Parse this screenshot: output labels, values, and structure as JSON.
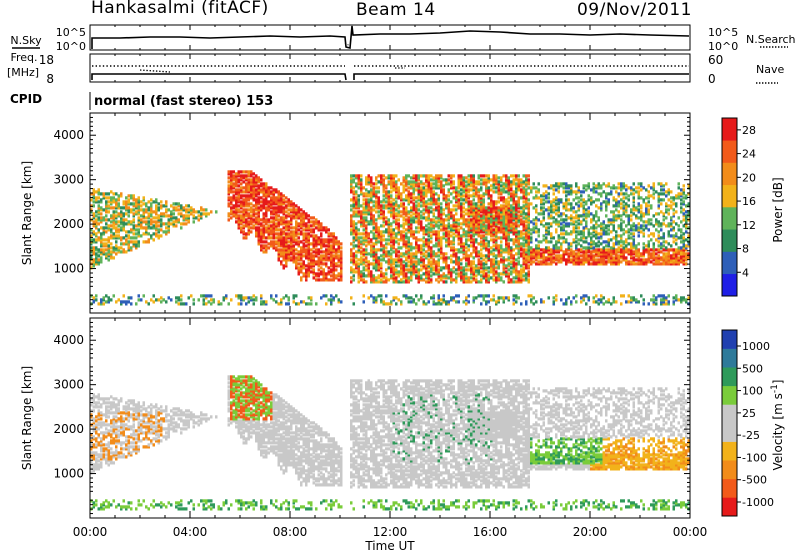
{
  "header": {
    "station": "Hankasalmi (fitACF)",
    "beam": "Beam 14",
    "date": "09/Nov/2011"
  },
  "panels": {
    "nsky_label": "N.Sky",
    "nsky_ticks": [
      "10^5",
      "10^0"
    ],
    "nsearch_label": "N.Search",
    "nsearch_ticks": [
      "10^5",
      "10^0"
    ],
    "freq_label_line1": "Freq.",
    "freq_label_line2": "[MHz]",
    "freq_ticks": [
      "18",
      "8"
    ],
    "nave_label": "Nave",
    "nave_ticks": [
      "60",
      "0"
    ],
    "cpid_label": "CPID",
    "cpid_text": "normal (fast stereo) 153"
  },
  "colors": {
    "power_scale": [
      "#1f1fe6",
      "#2e5fb8",
      "#2e8c5a",
      "#5fb35a",
      "#f2b21a",
      "#f28c1a",
      "#f25a1a",
      "#e61a1a"
    ],
    "velocity_scale": [
      "#2040b0",
      "#2e7a9a",
      "#2e9a5a",
      "#7acc3a",
      "#c8c8c8",
      "#c8c8c8",
      "#f2b21a",
      "#f28c1a",
      "#f25a1a",
      "#e61a1a"
    ]
  },
  "chart_data": [
    {
      "type": "heatmap",
      "ylabel": "Slant Range [km]",
      "yticks": [
        "1000",
        "2000",
        "3000",
        "4000"
      ],
      "ylim": [
        0,
        4500
      ],
      "xticks": [
        "00:00",
        "04:00",
        "08:00",
        "12:00",
        "16:00",
        "20:00",
        "00:00"
      ],
      "colorbar_label": "Power [dB]",
      "colorbar_ticks": [
        "4",
        "8",
        "12",
        "16",
        "20",
        "24",
        "28"
      ],
      "value_range": [
        0,
        30
      ]
    },
    {
      "type": "heatmap",
      "ylabel": "Slant Range [km]",
      "yticks": [
        "1000",
        "2000",
        "3000",
        "4000"
      ],
      "ylim": [
        0,
        4500
      ],
      "xticks": [
        "00:00",
        "04:00",
        "08:00",
        "12:00",
        "16:00",
        "20:00",
        "00:00"
      ],
      "xlabel": "Time UT",
      "colorbar_label": "Velocity [m s",
      "colorbar_label_sup": "-1",
      "colorbar_label_end": "]",
      "colorbar_ticks": [
        "1000",
        "500",
        "100",
        "25",
        "-25",
        "-100",
        "-500",
        "-1000"
      ],
      "value_range": [
        -1000,
        1000
      ]
    }
  ]
}
